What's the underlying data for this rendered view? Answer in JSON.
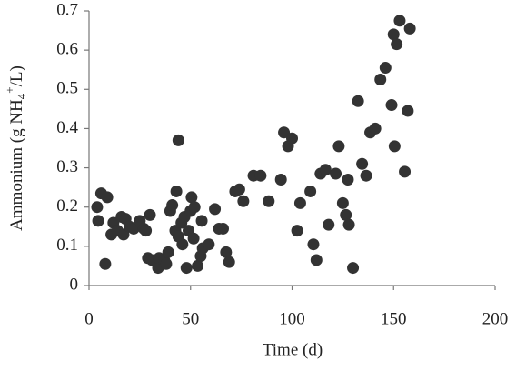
{
  "chart_data": {
    "type": "scatter",
    "x_label": "Time (d)",
    "y_label": {
      "text": "Ammonium  (g NH",
      "sub": "4",
      "sup": "+",
      "end": "/L)"
    },
    "xlim": [
      0,
      200
    ],
    "xticks": [
      0,
      50,
      100,
      150,
      200
    ],
    "ylim": [
      0,
      0.7
    ],
    "yticks": [
      0,
      0.1,
      0.2,
      0.3,
      0.4,
      0.5,
      0.6,
      0.7
    ],
    "color": "#333333",
    "x": [
      4,
      4.5,
      6,
      8,
      9,
      11,
      12,
      14,
      16,
      17,
      18,
      20,
      22,
      25,
      27,
      28,
      30,
      29,
      31,
      34,
      34.5,
      37,
      38,
      39,
      40,
      41,
      42.5,
      43,
      44,
      44,
      45.5,
      46,
      47,
      48,
      49,
      50,
      50.5,
      51.5,
      52,
      53.5,
      55,
      55.5,
      56,
      59,
      62,
      64,
      66,
      67.5,
      69,
      72,
      74,
      76,
      81,
      84.5,
      88.5,
      94.5,
      96,
      98,
      100,
      102.5,
      104,
      109,
      110.5,
      112,
      114,
      116.5,
      118,
      121.5,
      123,
      125,
      126.5,
      127.5,
      128,
      130,
      132.5,
      134.5,
      136.5,
      138.5,
      141,
      143.5,
      146,
      149,
      150,
      150.5,
      151.5,
      153,
      155.5,
      157,
      158
    ],
    "values": [
      0.2,
      0.165,
      0.235,
      0.055,
      0.225,
      0.13,
      0.16,
      0.14,
      0.175,
      0.13,
      0.17,
      0.15,
      0.145,
      0.165,
      0.145,
      0.14,
      0.18,
      0.07,
      0.065,
      0.045,
      0.07,
      0.065,
      0.055,
      0.085,
      0.19,
      0.205,
      0.14,
      0.24,
      0.125,
      0.37,
      0.16,
      0.105,
      0.175,
      0.045,
      0.14,
      0.19,
      0.225,
      0.12,
      0.2,
      0.05,
      0.075,
      0.165,
      0.095,
      0.105,
      0.195,
      0.145,
      0.145,
      0.085,
      0.06,
      0.24,
      0.245,
      0.215,
      0.28,
      0.28,
      0.215,
      0.27,
      0.39,
      0.355,
      0.375,
      0.14,
      0.21,
      0.24,
      0.105,
      0.065,
      0.285,
      0.295,
      0.155,
      0.285,
      0.355,
      0.21,
      0.18,
      0.27,
      0.155,
      0.045,
      0.47,
      0.31,
      0.28,
      0.39,
      0.4,
      0.525,
      0.555,
      0.46,
      0.64,
      0.355,
      0.615,
      0.675,
      0.29,
      0.445,
      0.655
    ]
  }
}
